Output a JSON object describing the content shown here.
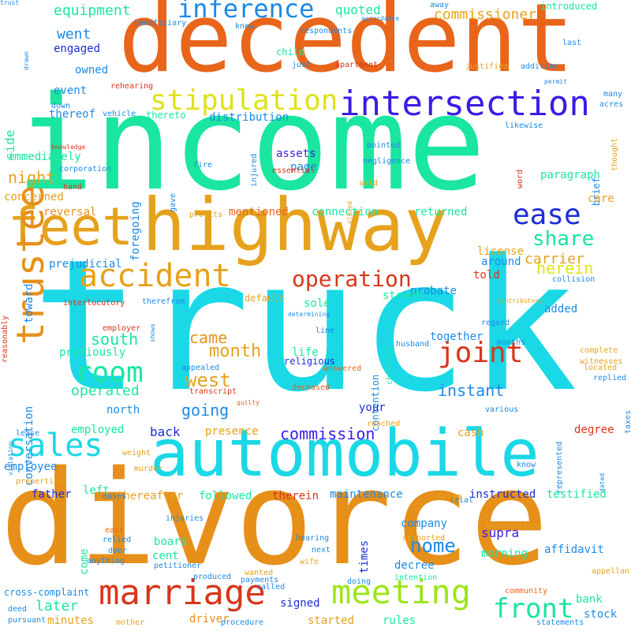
{
  "colors": {
    "background": "#ffffff",
    "cyan": "#1ad8e6",
    "orange": "#e8651a",
    "amber": "#e6a21c",
    "green": "#1ae6a0",
    "blue": "#1c2ed6",
    "red": "#d8361a",
    "lime": "#9ce61a",
    "yellow": "#dfe21a",
    "sky": "#1c8ae6",
    "purple": "#3a1ce6"
  },
  "words": [
    {
      "text": "truck",
      "size": 230,
      "color": "#1ad8e6"
    },
    {
      "text": "income",
      "size": 165,
      "color": "#1ae6a0"
    },
    {
      "text": "divorce",
      "size": 165,
      "color": "#e6901a"
    },
    {
      "text": "decedent",
      "size": 120,
      "color": "#e8651a"
    },
    {
      "text": "highway",
      "size": 92,
      "color": "#e6a21c"
    },
    {
      "text": "automobile",
      "size": 82,
      "color": "#1ad8e6"
    },
    {
      "text": "feet",
      "size": 66,
      "color": "#e6a21c"
    },
    {
      "text": "trustee",
      "size": 48,
      "color": "#e6901a"
    },
    {
      "text": "intersection",
      "size": 44,
      "color": "#3a1ce6"
    },
    {
      "text": "marriage",
      "size": 44,
      "color": "#d8361a"
    },
    {
      "text": "meeting",
      "size": 42,
      "color": "#9ce61a"
    },
    {
      "text": "accident",
      "size": 40,
      "color": "#e6a21c"
    },
    {
      "text": "sales",
      "size": 40,
      "color": "#1ad8e6"
    },
    {
      "text": "stipulation",
      "size": 36,
      "color": "#dfe21a"
    },
    {
      "text": "joint",
      "size": 36,
      "color": "#d8361a"
    },
    {
      "text": "room",
      "size": 36,
      "color": "#1ae6a0"
    },
    {
      "text": "ease",
      "size": 36,
      "color": "#1c2ed6"
    },
    {
      "text": "inference",
      "size": 32,
      "color": "#1c8ae6"
    },
    {
      "text": "front",
      "size": 34,
      "color": "#1ae6a0"
    },
    {
      "text": "operation",
      "size": 28,
      "color": "#d8361a"
    },
    {
      "text": "share",
      "size": 26,
      "color": "#1ae6a0"
    },
    {
      "text": "commission",
      "size": 20,
      "color": "#3a1ce6"
    },
    {
      "text": "west",
      "size": 24,
      "color": "#e6a21c"
    },
    {
      "text": "home",
      "size": 24,
      "color": "#1c8ae6"
    },
    {
      "text": "instant",
      "size": 20,
      "color": "#1c8ae6"
    },
    {
      "text": "month",
      "size": 22,
      "color": "#e6a21c"
    },
    {
      "text": "going",
      "size": 20,
      "color": "#1c8ae6"
    },
    {
      "text": "came",
      "size": 20,
      "color": "#e6901a"
    },
    {
      "text": "south",
      "size": 20,
      "color": "#1ae6a0"
    },
    {
      "text": "operated",
      "size": 18,
      "color": "#1ae6a0"
    },
    {
      "text": "later",
      "size": 18,
      "color": "#1ae6a0"
    },
    {
      "text": "herein",
      "size": 20,
      "color": "#dfe21a"
    },
    {
      "text": "carrier",
      "size": 18,
      "color": "#e6a21c"
    },
    {
      "text": "commissioner",
      "size": 18,
      "color": "#e6a21c"
    },
    {
      "text": "equipment",
      "size": 18,
      "color": "#1ae6a0"
    },
    {
      "text": "went",
      "size": 18,
      "color": "#1c8ae6"
    },
    {
      "text": "quoted",
      "size": 16,
      "color": "#1ae6a0"
    },
    {
      "text": "night",
      "size": 20,
      "color": "#e6a21c"
    },
    {
      "text": "side",
      "size": 16,
      "color": "#1ae6a0"
    },
    {
      "text": "engaged",
      "size": 14,
      "color": "#1c2ed6"
    },
    {
      "text": "owned",
      "size": 14,
      "color": "#1c8ae6"
    },
    {
      "text": "event",
      "size": 14,
      "color": "#1c8ae6"
    },
    {
      "text": "thereof",
      "size": 14,
      "color": "#1c8ae6"
    },
    {
      "text": "immediately",
      "size": 14,
      "color": "#1ae6a0"
    },
    {
      "text": "concerned",
      "size": 14,
      "color": "#e6a21c"
    },
    {
      "text": "reversal",
      "size": 14,
      "color": "#e6901a"
    },
    {
      "text": "prejudicial",
      "size": 14,
      "color": "#1c8ae6"
    },
    {
      "text": "toward",
      "size": 14,
      "color": "#1c8ae6"
    },
    {
      "text": "foregoing",
      "size": 14,
      "color": "#1c8ae6"
    },
    {
      "text": "mentioned",
      "size": 14,
      "color": "#e6651a"
    },
    {
      "text": "assets",
      "size": 14,
      "color": "#3a1ce6"
    },
    {
      "text": "page",
      "size": 14,
      "color": "#1c8ae6"
    },
    {
      "text": "connection",
      "size": 14,
      "color": "#1ae6a0"
    },
    {
      "text": "returned",
      "size": 14,
      "color": "#1ae6a0"
    },
    {
      "text": "paragraph",
      "size": 14,
      "color": "#1ae6a0"
    },
    {
      "text": "brief",
      "size": 12,
      "color": "#1c8ae6"
    },
    {
      "text": "care",
      "size": 14,
      "color": "#e6a21c"
    },
    {
      "text": "distribution",
      "size": 14,
      "color": "#1c8ae6"
    },
    {
      "text": "thereto",
      "size": 12,
      "color": "#1ae6a0"
    },
    {
      "text": "child",
      "size": 12,
      "color": "#1ae6a0"
    },
    {
      "text": "introduced",
      "size": 12,
      "color": "#1ae6a0"
    },
    {
      "text": "last",
      "size": 10,
      "color": "#1c8ae6"
    },
    {
      "text": "around",
      "size": 14,
      "color": "#1c8ae6"
    },
    {
      "text": "license",
      "size": 14,
      "color": "#e6a21c"
    },
    {
      "text": "told",
      "size": 14,
      "color": "#d8361a"
    },
    {
      "text": "sole",
      "size": 14,
      "color": "#1ae6a0"
    },
    {
      "text": "probate",
      "size": 14,
      "color": "#1c8ae6"
    },
    {
      "text": "street",
      "size": 14,
      "color": "#1ae6a0"
    },
    {
      "text": "default",
      "size": 12,
      "color": "#e6a21c"
    },
    {
      "text": "added",
      "size": 14,
      "color": "#1c8ae6"
    },
    {
      "text": "together",
      "size": 14,
      "color": "#1c8ae6"
    },
    {
      "text": "life",
      "size": 14,
      "color": "#1ae6a0"
    },
    {
      "text": "contention",
      "size": 12,
      "color": "#1c8ae6"
    },
    {
      "text": "previously",
      "size": 14,
      "color": "#1ae6a0"
    },
    {
      "text": "conversation",
      "size": 14,
      "color": "#1c8ae6"
    },
    {
      "text": "north",
      "size": 14,
      "color": "#1c8ae6"
    },
    {
      "text": "employed",
      "size": 14,
      "color": "#1ae6a0"
    },
    {
      "text": "back",
      "size": 16,
      "color": "#1c2ed6"
    },
    {
      "text": "presence",
      "size": 14,
      "color": "#e6a21c"
    },
    {
      "text": "your",
      "size": 14,
      "color": "#1c2ed6"
    },
    {
      "text": "cash",
      "size": 14,
      "color": "#e6a21c"
    },
    {
      "text": "degree",
      "size": 14,
      "color": "#d8361a"
    },
    {
      "text": "employee",
      "size": 14,
      "color": "#1c8ae6"
    },
    {
      "text": "left",
      "size": 14,
      "color": "#1ae6a0"
    },
    {
      "text": "father",
      "size": 14,
      "color": "#1c2ed6"
    },
    {
      "text": "thereafter",
      "size": 14,
      "color": "#e6a21c"
    },
    {
      "text": "followed",
      "size": 14,
      "color": "#1ae6a0"
    },
    {
      "text": "therein",
      "size": 14,
      "color": "#d8361a"
    },
    {
      "text": "maintenance",
      "size": 14,
      "color": "#1c8ae6"
    },
    {
      "text": "instructed",
      "size": 14,
      "color": "#1c2ed6"
    },
    {
      "text": "testified",
      "size": 14,
      "color": "#1ae6a0"
    },
    {
      "text": "company",
      "size": 14,
      "color": "#1c8ae6"
    },
    {
      "text": "supra",
      "size": 16,
      "color": "#3a1ce6"
    },
    {
      "text": "times",
      "size": 14,
      "color": "#1c2ed6"
    },
    {
      "text": "board",
      "size": 14,
      "color": "#1ae6a0"
    },
    {
      "text": "cent",
      "size": 14,
      "color": "#1ae6a0"
    },
    {
      "text": "come",
      "size": 14,
      "color": "#1ae6a0"
    },
    {
      "text": "morning",
      "size": 14,
      "color": "#1ae6a0"
    },
    {
      "text": "decree",
      "size": 14,
      "color": "#1c8ae6"
    },
    {
      "text": "affidavit",
      "size": 14,
      "color": "#1c8ae6"
    },
    {
      "text": "bank",
      "size": 14,
      "color": "#1ae6a0"
    },
    {
      "text": "stock",
      "size": 14,
      "color": "#1c8ae6"
    },
    {
      "text": "signed",
      "size": 14,
      "color": "#1c2ed6"
    },
    {
      "text": "started",
      "size": 14,
      "color": "#e6a21c"
    },
    {
      "text": "rules",
      "size": 14,
      "color": "#1ae6a0"
    },
    {
      "text": "minutes",
      "size": 14,
      "color": "#e6a21c"
    },
    {
      "text": "driver",
      "size": 14,
      "color": "#e6901a"
    },
    {
      "text": "cross-complaint",
      "size": 12,
      "color": "#1c8ae6"
    },
    {
      "text": "deed",
      "size": 10,
      "color": "#1c8ae6"
    },
    {
      "text": "pursuant",
      "size": 10,
      "color": "#1c8ae6"
    },
    {
      "text": "mother",
      "size": 10,
      "color": "#e6a21c"
    },
    {
      "text": "procedure",
      "size": 10,
      "color": "#1c8ae6"
    },
    {
      "text": "statements",
      "size": 10,
      "color": "#1c8ae6"
    },
    {
      "text": "community",
      "size": 10,
      "color": "#e6651a"
    },
    {
      "text": "payments",
      "size": 10,
      "color": "#1c8ae6"
    },
    {
      "text": "called",
      "size": 10,
      "color": "#1c8ae6"
    },
    {
      "text": "intention",
      "size": 10,
      "color": "#1ae6a0"
    },
    {
      "text": "doing",
      "size": 10,
      "color": "#1c8ae6"
    },
    {
      "text": "appellants",
      "size": 10,
      "color": "#e6a21c"
    },
    {
      "text": "wanted",
      "size": 10,
      "color": "#e6a21c"
    },
    {
      "text": "produced",
      "size": 10,
      "color": "#1c8ae6"
    },
    {
      "text": "anything",
      "size": 10,
      "color": "#1c8ae6"
    },
    {
      "text": "petitioner",
      "size": 10,
      "color": "#1c8ae6"
    },
    {
      "text": "door",
      "size": 10,
      "color": "#1c8ae6"
    },
    {
      "text": "relied",
      "size": 10,
      "color": "#1c8ae6"
    },
    {
      "text": "east",
      "size": 10,
      "color": "#e6651a"
    },
    {
      "text": "injuries",
      "size": 10,
      "color": "#1c8ae6"
    },
    {
      "text": "hearing",
      "size": 10,
      "color": "#1c8ae6"
    },
    {
      "text": "next",
      "size": 10,
      "color": "#1c8ae6"
    },
    {
      "text": "supported",
      "size": 10,
      "color": "#e6a21c"
    },
    {
      "text": "wife",
      "size": 10,
      "color": "#e6a21c"
    },
    {
      "text": "instructions",
      "size": 10,
      "color": "#e6a21c"
    },
    {
      "text": "trial",
      "size": 10,
      "color": "#1c8ae6"
    },
    {
      "text": "know",
      "size": 10,
      "color": "#1c8ae6"
    },
    {
      "text": "represented",
      "size": 10,
      "color": "#1c8ae6"
    },
    {
      "text": "dated",
      "size": 8,
      "color": "#1c8ae6"
    },
    {
      "text": "various",
      "size": 10,
      "color": "#1c8ae6"
    },
    {
      "text": "reached",
      "size": 10,
      "color": "#e6a21c"
    },
    {
      "text": "guilty",
      "size": 8,
      "color": "#e6651a"
    },
    {
      "text": "transcript",
      "size": 10,
      "color": "#d8361a"
    },
    {
      "text": "deceased",
      "size": 10,
      "color": "#e6651a"
    },
    {
      "text": "answered",
      "size": 10,
      "color": "#e6651a"
    },
    {
      "text": "appealed",
      "size": 10,
      "color": "#1c8ae6"
    },
    {
      "text": "religious",
      "size": 12,
      "color": "#1c2ed6"
    },
    {
      "text": "determining",
      "size": 8,
      "color": "#1c8ae6"
    },
    {
      "text": "children",
      "size": 10,
      "color": "#1ae6a0"
    },
    {
      "text": "husband",
      "size": 10,
      "color": "#1c8ae6"
    },
    {
      "text": "line",
      "size": 10,
      "color": "#1c8ae6"
    },
    {
      "text": "regard",
      "size": 10,
      "color": "#1c8ae6"
    },
    {
      "text": "months",
      "size": 10,
      "color": "#1c8ae6"
    },
    {
      "text": "complete",
      "size": 10,
      "color": "#e6a21c"
    },
    {
      "text": "witnesses",
      "size": 10,
      "color": "#e6a21c"
    },
    {
      "text": "located",
      "size": 10,
      "color": "#e6a21c"
    },
    {
      "text": "replied",
      "size": 10,
      "color": "#1c8ae6"
    },
    {
      "text": "taxes",
      "size": 10,
      "color": "#1c8ae6"
    },
    {
      "text": "collision",
      "size": 10,
      "color": "#1c8ae6"
    },
    {
      "text": "contributory",
      "size": 8,
      "color": "#e6a21c"
    },
    {
      "text": "interlocutory",
      "size": 10,
      "color": "#d8361a"
    },
    {
      "text": "therefrom",
      "size": 10,
      "color": "#1c8ae6"
    },
    {
      "text": "employer",
      "size": 10,
      "color": "#d8361a"
    },
    {
      "text": "shows",
      "size": 8,
      "color": "#1c8ae6"
    },
    {
      "text": "reasonably",
      "size": 10,
      "color": "#d8361a"
    },
    {
      "text": "violation",
      "size": 8,
      "color": "#1c8ae6"
    },
    {
      "text": "lease",
      "size": 10,
      "color": "#1c8ae6"
    },
    {
      "text": "properties",
      "size": 10,
      "color": "#e6a21c"
    },
    {
      "text": "murder",
      "size": 10,
      "color": "#e6a21c"
    },
    {
      "text": "eases",
      "size": 10,
      "color": "#1c8ae6"
    },
    {
      "text": "weight",
      "size": 10,
      "color": "#e6a21c"
    },
    {
      "text": "bring",
      "size": 10,
      "color": "#e6a21c"
    },
    {
      "text": "profits",
      "size": 10,
      "color": "#e6a21c"
    },
    {
      "text": "placed",
      "size": 8,
      "color": "#e6a21c"
    },
    {
      "text": "sold",
      "size": 10,
      "color": "#e6a21c"
    },
    {
      "text": "essential",
      "size": 10,
      "color": "#d8361a"
    },
    {
      "text": "negligence",
      "size": 10,
      "color": "#1c8ae6"
    },
    {
      "text": "pointed",
      "size": 10,
      "color": "#1c8ae6"
    },
    {
      "text": "fire",
      "size": 10,
      "color": "#1c8ae6"
    },
    {
      "text": "gave",
      "size": 10,
      "color": "#1c8ae6"
    },
    {
      "text": "injured",
      "size": 10,
      "color": "#1c8ae6"
    },
    {
      "text": "word",
      "size": 10,
      "color": "#d8361a"
    },
    {
      "text": "thought",
      "size": 10,
      "color": "#e6a21c"
    },
    {
      "text": "likewise",
      "size": 10,
      "color": "#1c8ae6"
    },
    {
      "text": "vehicle",
      "size": 10,
      "color": "#1c8ae6"
    },
    {
      "text": "down",
      "size": 10,
      "color": "#1c8ae6"
    },
    {
      "text": "corporation",
      "size": 10,
      "color": "#1c8ae6"
    },
    {
      "text": "hand",
      "size": 10,
      "color": "#d8361a"
    },
    {
      "text": "knowledge",
      "size": 8,
      "color": "#d8361a"
    },
    {
      "text": "rehearing",
      "size": 10,
      "color": "#d8361a"
    },
    {
      "text": "just",
      "size": 10,
      "color": "#1c8ae6"
    },
    {
      "text": "apartment",
      "size": 10,
      "color": "#d8361a"
    },
    {
      "text": "justified",
      "size": 10,
      "color": "#e6a21c"
    },
    {
      "text": "addition",
      "size": 10,
      "color": "#1c8ae6"
    },
    {
      "text": "permit",
      "size": 8,
      "color": "#1c8ae6"
    },
    {
      "text": "many",
      "size": 10,
      "color": "#1c8ae6"
    },
    {
      "text": "acres",
      "size": 10,
      "color": "#1c8ae6"
    },
    {
      "text": "away",
      "size": 10,
      "color": "#1c8ae6"
    },
    {
      "text": "respondents",
      "size": 10,
      "color": "#1c8ae6"
    },
    {
      "text": "knew",
      "size": 10,
      "color": "#1c8ae6"
    },
    {
      "text": "accordance",
      "size": 8,
      "color": "#1c8ae6"
    },
    {
      "text": "beneficiary",
      "size": 10,
      "color": "#1c8ae6"
    },
    {
      "text": "drawn",
      "size": 8,
      "color": "#1c8ae6"
    },
    {
      "text": "trust",
      "size": 8,
      "color": "#1c8ae6"
    }
  ]
}
